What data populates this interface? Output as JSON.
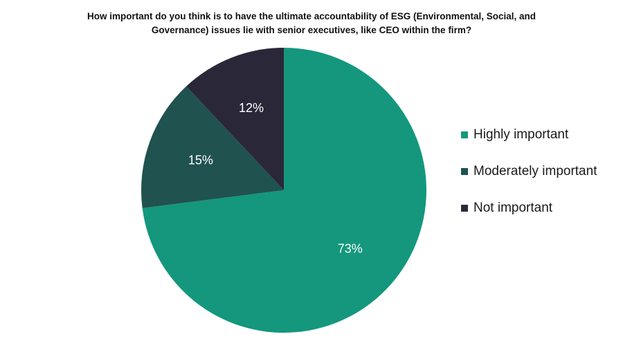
{
  "chart_data": {
    "type": "pie",
    "title_lines": [
      "How important do you think is to have the ultimate accountability of ESG (Environmental, Social, and",
      "Governance) issues lie with senior executives, like CEO within the firm?"
    ],
    "slices": [
      {
        "label": "Highly important",
        "value": 73,
        "display": "73%",
        "color": "#14977d",
        "label_color": "#ffffff"
      },
      {
        "label": "Moderately important",
        "value": 15,
        "display": "15%",
        "color": "#20524f",
        "label_color": "#ffffff"
      },
      {
        "label": "Not important",
        "value": 12,
        "display": "12%",
        "color": "#2a2838",
        "label_color": "#ffffff"
      }
    ],
    "start_angle": "12 o'clock",
    "direction": "clockwise",
    "legend_position": "right"
  }
}
